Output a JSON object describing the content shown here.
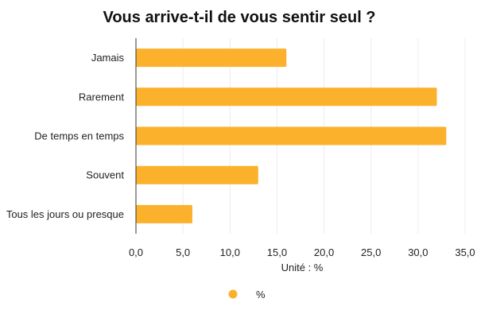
{
  "chart_data": {
    "type": "bar",
    "orientation": "horizontal",
    "title": "Vous arrive-t-il de vous sentir seul ?",
    "xlabel": "Unité : %",
    "ylabel": "",
    "categories": [
      "Jamais",
      "Rarement",
      "De temps en temps",
      "Souvent",
      "Tous les jours ou presque"
    ],
    "series": [
      {
        "name": "%",
        "color": "#FBB12B",
        "values": [
          16,
          32,
          33,
          13,
          6
        ]
      }
    ],
    "xlim": [
      0,
      35
    ],
    "xticks": [
      "0,0",
      "5,0",
      "10,0",
      "15,0",
      "20,0",
      "25,0",
      "30,0",
      "35,0"
    ],
    "grid": true,
    "legend": "bottom-center"
  }
}
